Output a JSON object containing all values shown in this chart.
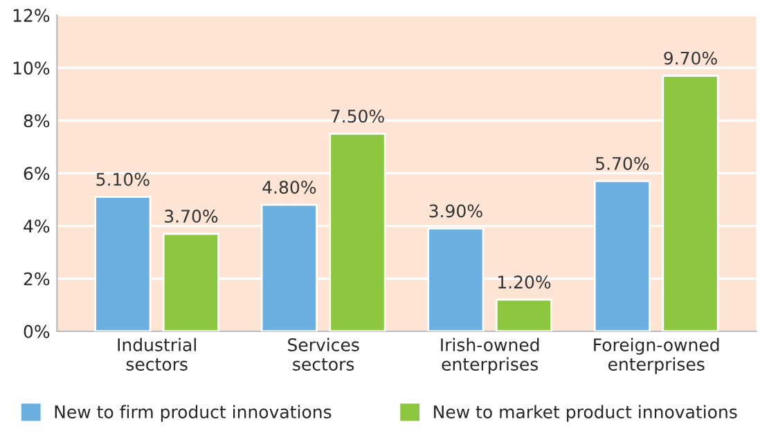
{
  "chart_data": {
    "type": "bar",
    "categories": [
      "Industrial\nsectors",
      "Services\nsectors",
      "Irish-owned\nenterprises",
      "Foreign-owned\nenterprises"
    ],
    "series": [
      {
        "name": "New to firm product innovations",
        "color": "#6aafe0",
        "values": [
          5.1,
          4.8,
          3.9,
          5.7
        ],
        "value_labels": [
          "5.10%",
          "4.80%",
          "3.90%",
          "5.70%"
        ]
      },
      {
        "name": "New to market product innovations",
        "color": "#8dc63f",
        "values": [
          3.7,
          7.5,
          1.2,
          9.7
        ],
        "value_labels": [
          "3.70%",
          "7.50%",
          "1.20%",
          "9.70%"
        ]
      }
    ],
    "ylim": [
      0,
      12
    ],
    "yticks": [
      {
        "value": 0,
        "label": "0%"
      },
      {
        "value": 2,
        "label": "2%"
      },
      {
        "value": 4,
        "label": "4%"
      },
      {
        "value": 6,
        "label": "6%"
      },
      {
        "value": 8,
        "label": "8%"
      },
      {
        "value": 10,
        "label": "10%"
      },
      {
        "value": 12,
        "label": "12%"
      }
    ],
    "grid": "y",
    "legend": "bottom"
  }
}
